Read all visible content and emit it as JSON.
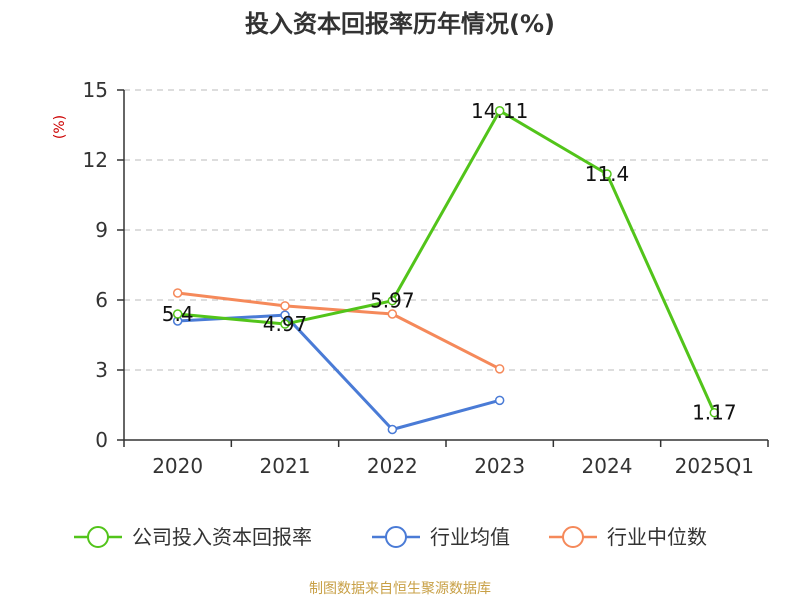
{
  "chart_data": {
    "type": "line",
    "title": "投入资本回报率历年情况(%)",
    "ylabel": "(%)",
    "xlabel": "",
    "categories": [
      "2020",
      "2021",
      "2022",
      "2023",
      "2024",
      "2025Q1"
    ],
    "ylim": [
      0,
      15
    ],
    "yticks": [
      0,
      3,
      6,
      9,
      12,
      15
    ],
    "grid": true,
    "legend_position": "bottom",
    "series": [
      {
        "name": "公司投入资本回报率",
        "color": "#52c41a",
        "values": [
          5.4,
          4.97,
          5.97,
          14.11,
          11.4,
          1.17
        ],
        "labels": [
          "5.4",
          "4.97",
          "5.97",
          "14.11",
          "11.4",
          "1.17"
        ]
      },
      {
        "name": "行业均值",
        "color": "#4a7bd6",
        "values": [
          5.1,
          5.35,
          0.45,
          1.7,
          null,
          null
        ]
      },
      {
        "name": "行业中位数",
        "color": "#f5895a",
        "values": [
          6.3,
          5.75,
          5.4,
          3.05,
          null,
          null
        ]
      }
    ]
  },
  "footer": {
    "source": "制图数据来自恒生聚源数据库"
  }
}
